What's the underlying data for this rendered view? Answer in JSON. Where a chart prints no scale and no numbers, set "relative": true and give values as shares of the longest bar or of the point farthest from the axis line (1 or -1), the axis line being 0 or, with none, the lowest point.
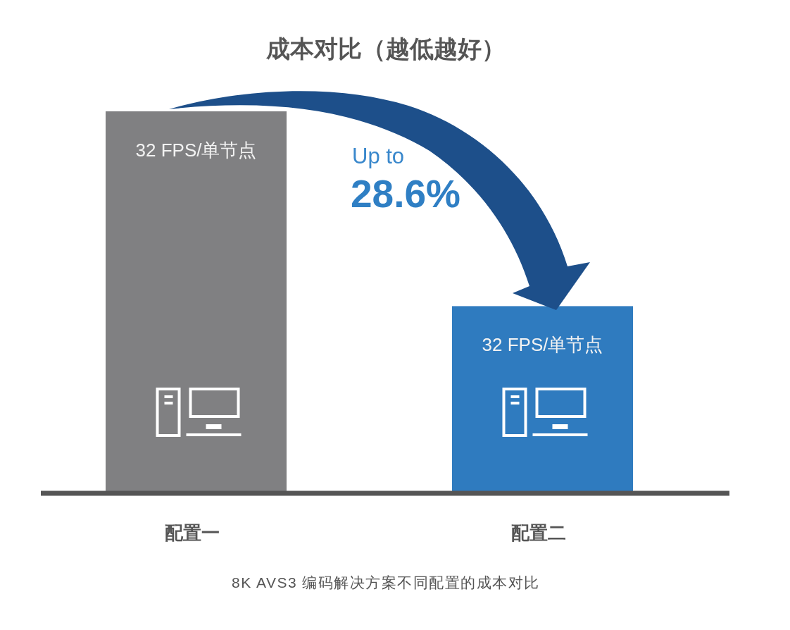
{
  "chart_data": {
    "type": "bar",
    "title": "成本对比（越低越好）",
    "categories": [
      "配置一",
      "配置二"
    ],
    "colors": [
      "#808082",
      "#2f7bbf"
    ],
    "values": [
      1,
      0.49
    ],
    "relative": true,
    "annotations": [
      "32 FPS/单节点",
      "32 FPS/单节点",
      "Up to",
      "28.6%",
      "8K AVS3 编码解决方案不同配置的成本对比"
    ]
  }
}
